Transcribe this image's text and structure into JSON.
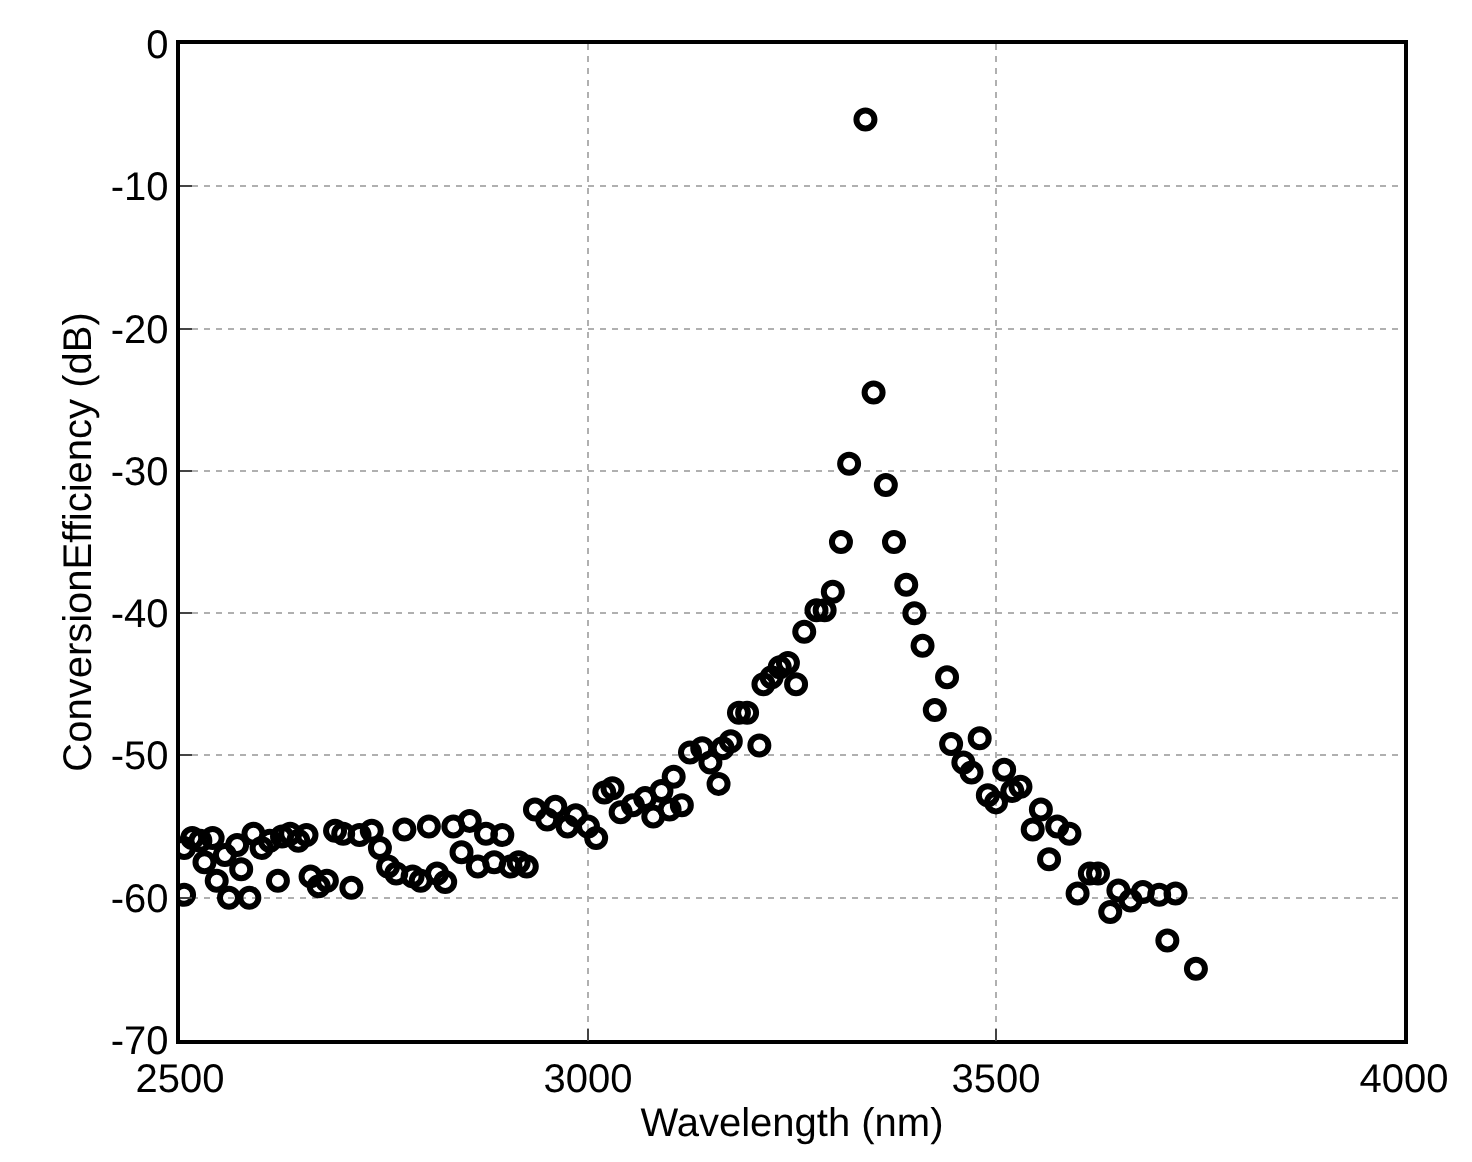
{
  "chart_data": {
    "type": "scatter",
    "xlabel": "Wavelength (nm)",
    "ylabel": "ConversionEfficiency (dB)",
    "xlim": [
      2500,
      4000
    ],
    "xticks": [
      2500,
      3000,
      3500,
      4000
    ],
    "ylim": [
      -70,
      0
    ],
    "yticks": [
      -70,
      -60,
      -50,
      -40,
      -30,
      -20,
      -10,
      0
    ],
    "grid": true,
    "marker": "circle",
    "x": [
      2505,
      2505,
      2515,
      2525,
      2530,
      2540,
      2545,
      2555,
      2560,
      2570,
      2575,
      2585,
      2590,
      2600,
      2610,
      2620,
      2625,
      2635,
      2645,
      2655,
      2660,
      2670,
      2680,
      2690,
      2700,
      2710,
      2720,
      2735,
      2745,
      2755,
      2765,
      2775,
      2785,
      2795,
      2805,
      2815,
      2825,
      2835,
      2845,
      2855,
      2865,
      2875,
      2885,
      2895,
      2905,
      2915,
      2925,
      2935,
      2950,
      2960,
      2975,
      2985,
      3000,
      3010,
      3020,
      3030,
      3040,
      3055,
      3070,
      3080,
      3090,
      3100,
      3105,
      3115,
      3125,
      3140,
      3150,
      3160,
      3165,
      3175,
      3185,
      3195,
      3210,
      3215,
      3225,
      3235,
      3245,
      3255,
      3265,
      3280,
      3290,
      3300,
      3310,
      3320,
      3340,
      3350,
      3365,
      3375,
      3390,
      3400,
      3410,
      3425,
      3440,
      3445,
      3460,
      3470,
      3480,
      3490,
      3500,
      3510,
      3520,
      3530,
      3545,
      3555,
      3565,
      3575,
      3590,
      3600,
      3615,
      3625,
      3640,
      3650,
      3665,
      3680,
      3700,
      3710,
      3720,
      3745
    ],
    "series": [
      {
        "color": "#000000",
        "values": [
          -56.5,
          -59.8,
          -55.8,
          -56,
          -57.5,
          -55.8,
          -58.8,
          -57,
          -60,
          -56.3,
          -58,
          -60,
          -55.5,
          -56.5,
          -56,
          -58.8,
          -55.7,
          -55.5,
          -56,
          -55.6,
          -58.5,
          -59.2,
          -58.8,
          -55.3,
          -55.5,
          -59.3,
          -55.6,
          -55.3,
          -56.5,
          -57.8,
          -58.3,
          -55.2,
          -58.5,
          -58.8,
          -55,
          -58.3,
          -58.9,
          -55,
          -56.8,
          -54.6,
          -57.8,
          -55.5,
          -57.5,
          -55.6,
          -57.8,
          -57.5,
          -57.8,
          -53.8,
          -54.5,
          -53.6,
          -55,
          -54.2,
          -55,
          -55.8,
          -52.6,
          -52.3,
          -54,
          -53.5,
          -53,
          -54.3,
          -52.5,
          -53.8,
          -51.5,
          -53.5,
          -49.8,
          -49.5,
          -50.5,
          -52,
          -49.5,
          -49,
          -47,
          -47,
          -49.3,
          -45,
          -44.5,
          -43.8,
          -43.5,
          -45,
          -41.3,
          -39.8,
          -39.8,
          -38.5,
          -35,
          -29.5,
          -5.3,
          -24.5,
          -31,
          -35,
          -38,
          -40,
          -42.3,
          -46.8,
          -44.5,
          -49.2,
          -50.5,
          -51.2,
          -48.8,
          -52.8,
          -53.3,
          -51,
          -52.5,
          -52.2,
          -55.2,
          -53.8,
          -57.3,
          -55,
          -55.5,
          -59.7,
          -58.3,
          -58.3,
          -61,
          -59.5,
          -60.2,
          -59.6,
          -59.8,
          -63,
          -59.7,
          -65
        ]
      }
    ]
  }
}
